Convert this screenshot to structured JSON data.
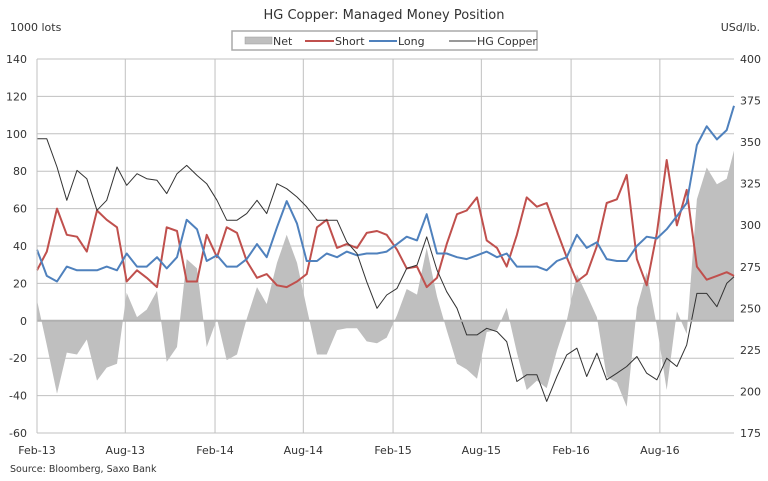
{
  "chart_data": {
    "type": "line",
    "title": "HG Copper: Managed Money Position",
    "ylabel_left": "1000 lots",
    "ylabel_right": "USd/lb.",
    "source": "Source: Bloomberg, Saxo Bank",
    "ylim_left": [
      -60,
      140
    ],
    "yticks_left": [
      -60,
      -40,
      -20,
      0,
      20,
      40,
      60,
      80,
      100,
      120,
      140
    ],
    "ylim_right": [
      175,
      400
    ],
    "yticks_right": [
      175,
      200,
      225,
      250,
      275,
      300,
      325,
      350,
      375,
      400
    ],
    "xlim": [
      "2013-02-01",
      "2016-12-31"
    ],
    "xticks": [
      {
        "label": "Feb-13",
        "date": "2013-02-01"
      },
      {
        "label": "Aug-13",
        "date": "2013-08-01"
      },
      {
        "label": "Feb-14",
        "date": "2014-02-01"
      },
      {
        "label": "Aug-14",
        "date": "2014-08-01"
      },
      {
        "label": "Feb-15",
        "date": "2015-02-01"
      },
      {
        "label": "Aug-15",
        "date": "2015-08-01"
      },
      {
        "label": "Feb-16",
        "date": "2016-02-01"
      },
      {
        "label": "Aug-16",
        "date": "2016-08-01"
      }
    ],
    "grid": true,
    "legend_position": "top-center",
    "dates": [
      "2013-02-01",
      "2013-02-21",
      "2013-03-14",
      "2013-04-03",
      "2013-04-24",
      "2013-05-14",
      "2013-06-04",
      "2013-06-24",
      "2013-07-15",
      "2013-08-04",
      "2013-08-25",
      "2013-09-14",
      "2013-10-05",
      "2013-10-25",
      "2013-11-15",
      "2013-12-05",
      "2013-12-26",
      "2014-01-15",
      "2014-02-05",
      "2014-02-25",
      "2014-03-18",
      "2014-04-07",
      "2014-04-28",
      "2014-05-18",
      "2014-06-08",
      "2014-06-28",
      "2014-07-19",
      "2014-08-08",
      "2014-08-29",
      "2014-09-18",
      "2014-10-09",
      "2014-10-29",
      "2014-11-19",
      "2014-12-09",
      "2014-12-30",
      "2015-01-19",
      "2015-02-09",
      "2015-03-01",
      "2015-03-22",
      "2015-04-11",
      "2015-05-02",
      "2015-05-22",
      "2015-06-12",
      "2015-07-02",
      "2015-07-23",
      "2015-08-12",
      "2015-09-02",
      "2015-09-22",
      "2015-10-13",
      "2015-11-02",
      "2015-11-23",
      "2015-12-13",
      "2016-01-03",
      "2016-01-23",
      "2016-02-13",
      "2016-03-04",
      "2016-03-25",
      "2016-04-14",
      "2016-05-05",
      "2016-05-25",
      "2016-06-15",
      "2016-07-05",
      "2016-07-26",
      "2016-08-15",
      "2016-09-05",
      "2016-09-25",
      "2016-10-16",
      "2016-11-05",
      "2016-11-26",
      "2016-12-16",
      "2016-12-31"
    ],
    "series": [
      {
        "name": "Net",
        "kind": "area",
        "axis": "left",
        "color": "#bfbfbf",
        "values": [
          11,
          -13,
          -39,
          -17,
          -18,
          -10,
          -32,
          -25,
          -23,
          15,
          2,
          6,
          16,
          -22,
          -14,
          33,
          28,
          -14,
          1,
          -21,
          -18,
          1,
          18,
          9,
          31,
          46,
          31,
          7,
          -18,
          -18,
          -5,
          -4,
          -4,
          -11,
          -12,
          -9,
          3,
          17,
          14,
          39,
          13,
          -5,
          -23,
          -26,
          -31,
          -6,
          -5,
          7,
          -17,
          -37,
          -32,
          -36,
          -16,
          0,
          25,
          14,
          2,
          -30,
          -33,
          -46,
          7,
          26,
          -3,
          -37,
          5,
          -7,
          65,
          82,
          73,
          76,
          91
        ]
      },
      {
        "name": "Short",
        "kind": "line",
        "axis": "left",
        "color": "#c0504d",
        "values": [
          27,
          37,
          60,
          46,
          45,
          37,
          59,
          54,
          50,
          21,
          27,
          23,
          18,
          50,
          48,
          21,
          21,
          46,
          34,
          50,
          47,
          32,
          23,
          25,
          19,
          18,
          21,
          25,
          50,
          54,
          39,
          41,
          39,
          47,
          48,
          46,
          38,
          28,
          29,
          18,
          23,
          41,
          57,
          59,
          66,
          43,
          39,
          29,
          46,
          66,
          61,
          63,
          48,
          34,
          21,
          25,
          40,
          63,
          65,
          78,
          33,
          19,
          47,
          86,
          51,
          70,
          29,
          22,
          24,
          26,
          24
        ]
      },
      {
        "name": "Long",
        "kind": "line",
        "axis": "left",
        "color": "#4f81bd",
        "values": [
          38,
          24,
          21,
          29,
          27,
          27,
          27,
          29,
          27,
          36,
          29,
          29,
          34,
          28,
          34,
          54,
          49,
          32,
          35,
          29,
          29,
          33,
          41,
          34,
          50,
          64,
          52,
          32,
          32,
          36,
          34,
          37,
          35,
          36,
          36,
          37,
          41,
          45,
          43,
          57,
          36,
          36,
          34,
          33,
          35,
          37,
          34,
          36,
          29,
          29,
          29,
          27,
          32,
          34,
          46,
          39,
          42,
          33,
          32,
          32,
          40,
          45,
          44,
          49,
          56,
          63,
          94,
          104,
          97,
          102,
          115
        ]
      },
      {
        "name": "HG Copper",
        "kind": "line",
        "axis": "right",
        "color": "#333333",
        "values": [
          352,
          352,
          335,
          315,
          333,
          328,
          309,
          315,
          335,
          324,
          331,
          328,
          327,
          319,
          331,
          336,
          330,
          325,
          315,
          303,
          303,
          307,
          315,
          307,
          325,
          322,
          317,
          311,
          303,
          303,
          303,
          290,
          283,
          266,
          250,
          258,
          262,
          274,
          276,
          293,
          273,
          260,
          250,
          234,
          234,
          238,
          236,
          230,
          206,
          210,
          210,
          194,
          209,
          222,
          226,
          209,
          223,
          207,
          211,
          215,
          221,
          211,
          207,
          220,
          215,
          228,
          259,
          259,
          251,
          265,
          269
        ]
      }
    ]
  }
}
